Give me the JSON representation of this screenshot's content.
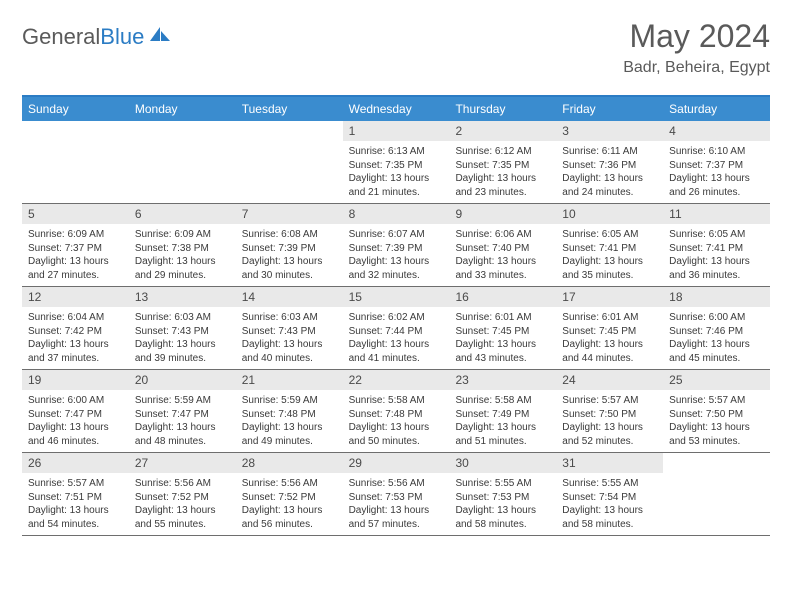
{
  "logo": {
    "textGray": "General",
    "textBlue": "Blue"
  },
  "title": "May 2024",
  "location": "Badr, Beheira, Egypt",
  "dayNames": [
    "Sunday",
    "Monday",
    "Tuesday",
    "Wednesday",
    "Thursday",
    "Friday",
    "Saturday"
  ],
  "colors": {
    "headerBlue": "#3a8ccf",
    "borderBlue": "#2b7cc4",
    "dayNumBg": "#e9e9e9",
    "textGray": "#5a5a5a"
  },
  "weeks": [
    [
      {
        "n": ""
      },
      {
        "n": ""
      },
      {
        "n": ""
      },
      {
        "n": "1",
        "sr": "Sunrise: 6:13 AM",
        "ss": "Sunset: 7:35 PM",
        "d1": "Daylight: 13 hours",
        "d2": "and 21 minutes."
      },
      {
        "n": "2",
        "sr": "Sunrise: 6:12 AM",
        "ss": "Sunset: 7:35 PM",
        "d1": "Daylight: 13 hours",
        "d2": "and 23 minutes."
      },
      {
        "n": "3",
        "sr": "Sunrise: 6:11 AM",
        "ss": "Sunset: 7:36 PM",
        "d1": "Daylight: 13 hours",
        "d2": "and 24 minutes."
      },
      {
        "n": "4",
        "sr": "Sunrise: 6:10 AM",
        "ss": "Sunset: 7:37 PM",
        "d1": "Daylight: 13 hours",
        "d2": "and 26 minutes."
      }
    ],
    [
      {
        "n": "5",
        "sr": "Sunrise: 6:09 AM",
        "ss": "Sunset: 7:37 PM",
        "d1": "Daylight: 13 hours",
        "d2": "and 27 minutes."
      },
      {
        "n": "6",
        "sr": "Sunrise: 6:09 AM",
        "ss": "Sunset: 7:38 PM",
        "d1": "Daylight: 13 hours",
        "d2": "and 29 minutes."
      },
      {
        "n": "7",
        "sr": "Sunrise: 6:08 AM",
        "ss": "Sunset: 7:39 PM",
        "d1": "Daylight: 13 hours",
        "d2": "and 30 minutes."
      },
      {
        "n": "8",
        "sr": "Sunrise: 6:07 AM",
        "ss": "Sunset: 7:39 PM",
        "d1": "Daylight: 13 hours",
        "d2": "and 32 minutes."
      },
      {
        "n": "9",
        "sr": "Sunrise: 6:06 AM",
        "ss": "Sunset: 7:40 PM",
        "d1": "Daylight: 13 hours",
        "d2": "and 33 minutes."
      },
      {
        "n": "10",
        "sr": "Sunrise: 6:05 AM",
        "ss": "Sunset: 7:41 PM",
        "d1": "Daylight: 13 hours",
        "d2": "and 35 minutes."
      },
      {
        "n": "11",
        "sr": "Sunrise: 6:05 AM",
        "ss": "Sunset: 7:41 PM",
        "d1": "Daylight: 13 hours",
        "d2": "and 36 minutes."
      }
    ],
    [
      {
        "n": "12",
        "sr": "Sunrise: 6:04 AM",
        "ss": "Sunset: 7:42 PM",
        "d1": "Daylight: 13 hours",
        "d2": "and 37 minutes."
      },
      {
        "n": "13",
        "sr": "Sunrise: 6:03 AM",
        "ss": "Sunset: 7:43 PM",
        "d1": "Daylight: 13 hours",
        "d2": "and 39 minutes."
      },
      {
        "n": "14",
        "sr": "Sunrise: 6:03 AM",
        "ss": "Sunset: 7:43 PM",
        "d1": "Daylight: 13 hours",
        "d2": "and 40 minutes."
      },
      {
        "n": "15",
        "sr": "Sunrise: 6:02 AM",
        "ss": "Sunset: 7:44 PM",
        "d1": "Daylight: 13 hours",
        "d2": "and 41 minutes."
      },
      {
        "n": "16",
        "sr": "Sunrise: 6:01 AM",
        "ss": "Sunset: 7:45 PM",
        "d1": "Daylight: 13 hours",
        "d2": "and 43 minutes."
      },
      {
        "n": "17",
        "sr": "Sunrise: 6:01 AM",
        "ss": "Sunset: 7:45 PM",
        "d1": "Daylight: 13 hours",
        "d2": "and 44 minutes."
      },
      {
        "n": "18",
        "sr": "Sunrise: 6:00 AM",
        "ss": "Sunset: 7:46 PM",
        "d1": "Daylight: 13 hours",
        "d2": "and 45 minutes."
      }
    ],
    [
      {
        "n": "19",
        "sr": "Sunrise: 6:00 AM",
        "ss": "Sunset: 7:47 PM",
        "d1": "Daylight: 13 hours",
        "d2": "and 46 minutes."
      },
      {
        "n": "20",
        "sr": "Sunrise: 5:59 AM",
        "ss": "Sunset: 7:47 PM",
        "d1": "Daylight: 13 hours",
        "d2": "and 48 minutes."
      },
      {
        "n": "21",
        "sr": "Sunrise: 5:59 AM",
        "ss": "Sunset: 7:48 PM",
        "d1": "Daylight: 13 hours",
        "d2": "and 49 minutes."
      },
      {
        "n": "22",
        "sr": "Sunrise: 5:58 AM",
        "ss": "Sunset: 7:48 PM",
        "d1": "Daylight: 13 hours",
        "d2": "and 50 minutes."
      },
      {
        "n": "23",
        "sr": "Sunrise: 5:58 AM",
        "ss": "Sunset: 7:49 PM",
        "d1": "Daylight: 13 hours",
        "d2": "and 51 minutes."
      },
      {
        "n": "24",
        "sr": "Sunrise: 5:57 AM",
        "ss": "Sunset: 7:50 PM",
        "d1": "Daylight: 13 hours",
        "d2": "and 52 minutes."
      },
      {
        "n": "25",
        "sr": "Sunrise: 5:57 AM",
        "ss": "Sunset: 7:50 PM",
        "d1": "Daylight: 13 hours",
        "d2": "and 53 minutes."
      }
    ],
    [
      {
        "n": "26",
        "sr": "Sunrise: 5:57 AM",
        "ss": "Sunset: 7:51 PM",
        "d1": "Daylight: 13 hours",
        "d2": "and 54 minutes."
      },
      {
        "n": "27",
        "sr": "Sunrise: 5:56 AM",
        "ss": "Sunset: 7:52 PM",
        "d1": "Daylight: 13 hours",
        "d2": "and 55 minutes."
      },
      {
        "n": "28",
        "sr": "Sunrise: 5:56 AM",
        "ss": "Sunset: 7:52 PM",
        "d1": "Daylight: 13 hours",
        "d2": "and 56 minutes."
      },
      {
        "n": "29",
        "sr": "Sunrise: 5:56 AM",
        "ss": "Sunset: 7:53 PM",
        "d1": "Daylight: 13 hours",
        "d2": "and 57 minutes."
      },
      {
        "n": "30",
        "sr": "Sunrise: 5:55 AM",
        "ss": "Sunset: 7:53 PM",
        "d1": "Daylight: 13 hours",
        "d2": "and 58 minutes."
      },
      {
        "n": "31",
        "sr": "Sunrise: 5:55 AM",
        "ss": "Sunset: 7:54 PM",
        "d1": "Daylight: 13 hours",
        "d2": "and 58 minutes."
      },
      {
        "n": ""
      }
    ]
  ]
}
